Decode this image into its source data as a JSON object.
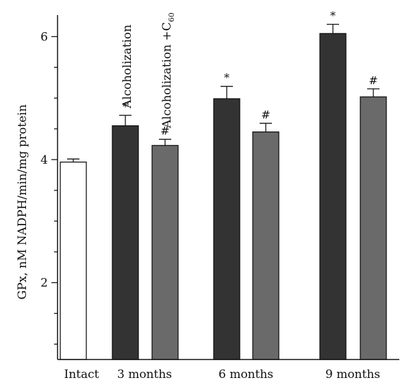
{
  "chart_data": {
    "type": "bar",
    "ylabel": "GPx, nM NADPH/min/mg protein",
    "ylim": [
      0.75,
      6.35
    ],
    "yticks": [
      2,
      4,
      6
    ],
    "categories": [
      "Intact",
      "3 months",
      "6 months",
      "9 months"
    ],
    "colors": {
      "intact": "#ffffff",
      "alcoholization": "#333333",
      "alcoholization_c60": "#6a6a6a",
      "axis": "#111111"
    },
    "series": [
      {
        "name": "Intact",
        "values": [
          3.96,
          null,
          null,
          null
        ],
        "errors": [
          0.05,
          null,
          null,
          null
        ],
        "marks": [
          "",
          null,
          null,
          null
        ]
      },
      {
        "name": "Alcoholization",
        "values": [
          null,
          4.55,
          4.99,
          6.05
        ],
        "errors": [
          null,
          0.17,
          0.2,
          0.15
        ],
        "marks": [
          null,
          "*",
          "*",
          "*"
        ]
      },
      {
        "name": "Alcoholization +C",
        "name_subscript": "60",
        "values": [
          null,
          4.23,
          4.45,
          5.02
        ],
        "errors": [
          null,
          0.1,
          0.14,
          0.13
        ],
        "marks": [
          null,
          "#",
          "#",
          "#"
        ]
      }
    ]
  }
}
